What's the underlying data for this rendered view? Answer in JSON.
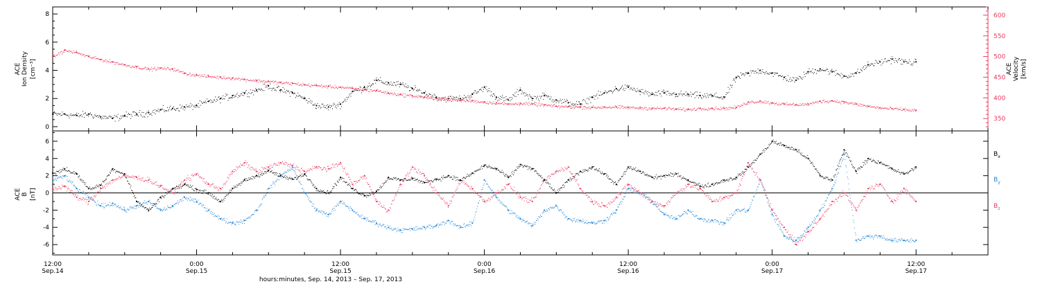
{
  "figure": {
    "xlabel": "hours:minutes, Sep. 14, 2013 – Sep. 17, 2013"
  },
  "colors": {
    "black": "#000000",
    "pink": "#e8385e",
    "blue": "#1d84d6"
  },
  "chart_data": [
    {
      "type": "scatter",
      "panel": "top",
      "x_unit": "hours since Sep. 14 00:00",
      "xlim": [
        12,
        90
      ],
      "x_ticks": [
        {
          "x": 12,
          "label1": "12:00",
          "label2": "Sep.14"
        },
        {
          "x": 24,
          "label1": "0:00",
          "label2": "Sep.15"
        },
        {
          "x": 36,
          "label1": "12:00",
          "label2": "Sep.15"
        },
        {
          "x": 48,
          "label1": "0:00",
          "label2": "Sep.16"
        },
        {
          "x": 60,
          "label1": "12:00",
          "label2": "Sep.16"
        },
        {
          "x": 72,
          "label1": "0:00",
          "label2": "Sep.17"
        },
        {
          "x": 84,
          "label1": "12:00",
          "label2": "Sep.17"
        }
      ],
      "ylabel_left": [
        "ACE",
        "Ion Density",
        "[cm⁻³]"
      ],
      "ylim_left": [
        -0.3,
        8.5
      ],
      "yticks_left": [
        0,
        2,
        4,
        6,
        8
      ],
      "ylabel_right": [
        "ACE",
        "Velocity",
        "[km/s]"
      ],
      "ylim_right": [
        320,
        620
      ],
      "yticks_right": [
        350,
        400,
        450,
        500,
        550,
        600
      ],
      "series": [
        {
          "name": "Ion Density",
          "axis": "left",
          "color": "#000000",
          "x": [
            12,
            13,
            14,
            15,
            16,
            17,
            18,
            19,
            20,
            21,
            22,
            23,
            24,
            25,
            26,
            27,
            28,
            29,
            30,
            31,
            32,
            33,
            34,
            35,
            36,
            37,
            38,
            39,
            40,
            41,
            42,
            43,
            44,
            45,
            46,
            47,
            48,
            49,
            50,
            51,
            52,
            53,
            54,
            55,
            56,
            57,
            58,
            59,
            60,
            61,
            62,
            63,
            64,
            65,
            66,
            67,
            68,
            69,
            70,
            71,
            72,
            73,
            74,
            75,
            76,
            77,
            78,
            79,
            80,
            81,
            82,
            83,
            84
          ],
          "y": [
            0.9,
            0.9,
            0.8,
            0.9,
            0.7,
            0.6,
            0.8,
            0.9,
            1.0,
            1.2,
            1.3,
            1.4,
            1.5,
            1.8,
            2.0,
            2.2,
            2.4,
            2.6,
            2.9,
            2.6,
            2.4,
            2.0,
            1.5,
            1.4,
            1.6,
            2.5,
            2.8,
            3.3,
            3.1,
            3.0,
            2.7,
            2.4,
            2.1,
            2.0,
            2.0,
            2.3,
            2.8,
            2.1,
            1.9,
            2.6,
            2.0,
            2.2,
            1.9,
            1.7,
            1.6,
            2.1,
            2.4,
            2.7,
            2.8,
            2.5,
            2.3,
            2.4,
            2.3,
            2.3,
            2.2,
            2.2,
            2.1,
            3.5,
            3.8,
            4.0,
            3.8,
            3.5,
            3.3,
            3.9,
            4.1,
            3.9,
            3.6,
            3.8,
            4.4,
            4.6,
            4.8,
            4.6,
            4.6
          ]
        },
        {
          "name": "Velocity",
          "axis": "right",
          "color": "#e8385e",
          "x": [
            12,
            13,
            14,
            15,
            16,
            17,
            18,
            19,
            20,
            21,
            22,
            23,
            24,
            25,
            26,
            27,
            28,
            29,
            30,
            31,
            32,
            33,
            34,
            35,
            36,
            37,
            38,
            39,
            40,
            41,
            42,
            43,
            44,
            45,
            46,
            47,
            48,
            49,
            50,
            51,
            52,
            53,
            54,
            55,
            56,
            57,
            58,
            59,
            60,
            61,
            62,
            63,
            64,
            65,
            66,
            67,
            68,
            69,
            70,
            71,
            72,
            73,
            74,
            75,
            76,
            77,
            78,
            79,
            80,
            81,
            82,
            83,
            84
          ],
          "y": [
            500,
            515,
            510,
            500,
            493,
            487,
            480,
            475,
            470,
            472,
            470,
            460,
            455,
            452,
            450,
            448,
            445,
            442,
            440,
            437,
            435,
            432,
            430,
            428,
            426,
            423,
            420,
            418,
            412,
            408,
            405,
            402,
            398,
            397,
            395,
            393,
            390,
            388,
            385,
            387,
            385,
            383,
            380,
            379,
            378,
            377,
            378,
            378,
            377,
            376,
            375,
            375,
            373,
            372,
            375,
            375,
            375,
            377,
            390,
            392,
            388,
            385,
            384,
            385,
            392,
            393,
            390,
            385,
            380,
            376,
            374,
            372,
            370
          ]
        }
      ]
    },
    {
      "type": "scatter",
      "panel": "bottom",
      "x_unit": "hours since Sep. 14 00:00",
      "xlim": [
        12,
        90
      ],
      "ylabel": [
        "ACE",
        "B",
        "[nT]"
      ],
      "ylim": [
        -7.2,
        7.2
      ],
      "yticks": [
        -6,
        -4,
        -2,
        0,
        2,
        4,
        6
      ],
      "zero_line": true,
      "series": [
        {
          "name": "Bx",
          "color": "#000000",
          "x": [
            12,
            13,
            14,
            15,
            16,
            17,
            18,
            19,
            20,
            21,
            22,
            23,
            24,
            25,
            26,
            27,
            28,
            29,
            30,
            31,
            32,
            33,
            34,
            35,
            36,
            37,
            38,
            39,
            40,
            41,
            42,
            43,
            44,
            45,
            46,
            47,
            48,
            49,
            50,
            51,
            52,
            53,
            54,
            55,
            56,
            57,
            58,
            59,
            60,
            61,
            62,
            63,
            64,
            65,
            66,
            67,
            68,
            69,
            70,
            71,
            72,
            73,
            74,
            75,
            76,
            77,
            78,
            79,
            80,
            81,
            82,
            83,
            84
          ],
          "y": [
            2.3,
            2.8,
            2.2,
            0.5,
            0.9,
            2.8,
            2.2,
            -1.0,
            -2.0,
            -0.5,
            0.5,
            1.0,
            0.4,
            0.0,
            -1.0,
            0.5,
            1.5,
            2.0,
            2.6,
            2.0,
            1.6,
            2.2,
            0.5,
            0.0,
            1.8,
            0.5,
            -0.3,
            0.2,
            1.8,
            1.5,
            1.7,
            1.2,
            1.6,
            2.0,
            1.5,
            2.3,
            3.2,
            2.8,
            1.8,
            3.3,
            2.8,
            1.5,
            0.0,
            1.5,
            2.5,
            3.0,
            2.2,
            1.0,
            3.0,
            2.5,
            1.8,
            2.0,
            2.2,
            1.5,
            0.8,
            1.0,
            1.5,
            1.8,
            3.0,
            4.5,
            6.0,
            5.5,
            5.0,
            4.0,
            2.0,
            1.5,
            5.0,
            2.5,
            4.0,
            3.5,
            2.8,
            2.2,
            3.0
          ]
        },
        {
          "name": "By",
          "color": "#1d84d6",
          "x": [
            12,
            13,
            14,
            15,
            16,
            17,
            18,
            19,
            20,
            21,
            22,
            23,
            24,
            25,
            26,
            27,
            28,
            29,
            30,
            31,
            32,
            33,
            34,
            35,
            36,
            37,
            38,
            39,
            40,
            41,
            42,
            43,
            44,
            45,
            46,
            47,
            48,
            49,
            50,
            51,
            52,
            53,
            54,
            55,
            56,
            57,
            58,
            59,
            60,
            61,
            62,
            63,
            64,
            65,
            66,
            67,
            68,
            69,
            70,
            71,
            72,
            73,
            74,
            75,
            76,
            77,
            78,
            79,
            80,
            81,
            82,
            83,
            84
          ],
          "y": [
            1.5,
            2.0,
            0.5,
            -0.5,
            -1.5,
            -1.2,
            -2.0,
            -1.5,
            -1.0,
            -2.0,
            -1.5,
            -0.5,
            -1.0,
            -2.0,
            -3.0,
            -3.5,
            -3.2,
            -2.0,
            0.5,
            2.0,
            3.0,
            0.0,
            -2.0,
            -2.5,
            -1.0,
            -2.0,
            -3.0,
            -3.5,
            -4.0,
            -4.3,
            -4.2,
            -4.0,
            -3.8,
            -3.2,
            -4.0,
            -3.5,
            1.5,
            -0.5,
            -2.0,
            -3.0,
            -3.8,
            -2.0,
            -1.5,
            -3.0,
            -3.2,
            -3.5,
            -3.2,
            -2.0,
            0.5,
            0.0,
            -1.0,
            -2.5,
            -3.0,
            -2.0,
            -3.0,
            -3.2,
            -3.5,
            -2.0,
            -2.0,
            1.5,
            -2.5,
            -5.0,
            -5.5,
            -4.0,
            -2.0,
            0.5,
            4.5,
            -5.5,
            -5.0,
            -5.0,
            -5.5,
            -5.5,
            -5.5
          ]
        },
        {
          "name": "Bz",
          "color": "#e8385e",
          "x": [
            12,
            13,
            14,
            15,
            16,
            17,
            18,
            19,
            20,
            21,
            22,
            23,
            24,
            25,
            26,
            27,
            28,
            29,
            30,
            31,
            32,
            33,
            34,
            35,
            36,
            37,
            38,
            39,
            40,
            41,
            42,
            43,
            44,
            45,
            46,
            47,
            48,
            49,
            50,
            51,
            52,
            53,
            54,
            55,
            56,
            57,
            58,
            59,
            60,
            61,
            62,
            63,
            64,
            65,
            66,
            67,
            68,
            69,
            70,
            71,
            72,
            73,
            74,
            75,
            76,
            77,
            78,
            79,
            80,
            81,
            82,
            83,
            84
          ],
          "y": [
            0.5,
            0.8,
            -0.5,
            -1.0,
            0.5,
            1.5,
            2.0,
            1.8,
            1.5,
            0.8,
            0.0,
            1.5,
            2.2,
            1.0,
            0.5,
            2.5,
            3.5,
            2.5,
            3.0,
            3.5,
            3.2,
            2.5,
            3.0,
            2.8,
            3.5,
            1.0,
            2.0,
            -1.0,
            -2.0,
            1.0,
            3.0,
            2.0,
            0.0,
            -1.5,
            1.5,
            0.5,
            -1.0,
            0.0,
            1.0,
            -0.5,
            -1.0,
            1.5,
            2.5,
            3.0,
            0.5,
            -1.0,
            -1.5,
            -0.5,
            1.0,
            0.0,
            -1.0,
            -1.5,
            0.0,
            1.0,
            0.5,
            -1.0,
            -0.5,
            0.0,
            3.5,
            1.5,
            -2.0,
            -4.0,
            -6.0,
            -4.5,
            -3.0,
            -1.0,
            0.0,
            -2.0,
            0.5,
            1.0,
            -1.0,
            0.5,
            -1.0
          ]
        }
      ],
      "legend": [
        {
          "base": "B",
          "sub": "x",
          "color": "#000000"
        },
        {
          "base": "B",
          "sub": "y",
          "color": "#1d84d6"
        },
        {
          "base": "B",
          "sub": "z",
          "color": "#e8385e"
        }
      ]
    }
  ]
}
